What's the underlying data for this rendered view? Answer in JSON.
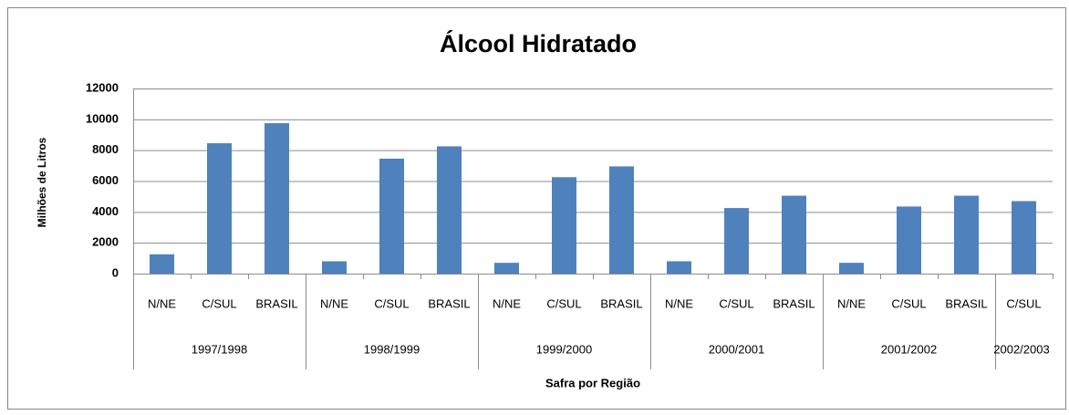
{
  "chart_data": {
    "type": "bar",
    "title": "Álcool Hidratado",
    "y_label": "Milhões de Litros",
    "x_label": "Safra por Região",
    "color": "#4f81bd",
    "grid": true,
    "ylim": [
      0,
      12000
    ],
    "yticks": [
      0,
      2000,
      4000,
      6000,
      8000,
      10000,
      12000
    ],
    "groups": [
      {
        "name": "1997/1998",
        "categories": [
          "N/NE",
          "C/SUL",
          "BRASIL"
        ],
        "values": [
          1250,
          8450,
          9750
        ]
      },
      {
        "name": "1998/1999",
        "categories": [
          "N/NE",
          "C/SUL",
          "BRASIL"
        ],
        "values": [
          800,
          7450,
          8250
        ]
      },
      {
        "name": "1999/2000",
        "categories": [
          "N/NE",
          "C/SUL",
          "BRASIL"
        ],
        "values": [
          700,
          6250,
          6950
        ]
      },
      {
        "name": "2000/2001",
        "categories": [
          "N/NE",
          "C/SUL",
          "BRASIL"
        ],
        "values": [
          800,
          4250,
          5050
        ]
      },
      {
        "name": "2001/2002",
        "categories": [
          "N/NE",
          "C/SUL",
          "BRASIL"
        ],
        "values": [
          700,
          4350,
          5050
        ]
      },
      {
        "name": "2002/2003",
        "categories": [
          "C/SUL"
        ],
        "values": [
          4700
        ]
      }
    ]
  }
}
